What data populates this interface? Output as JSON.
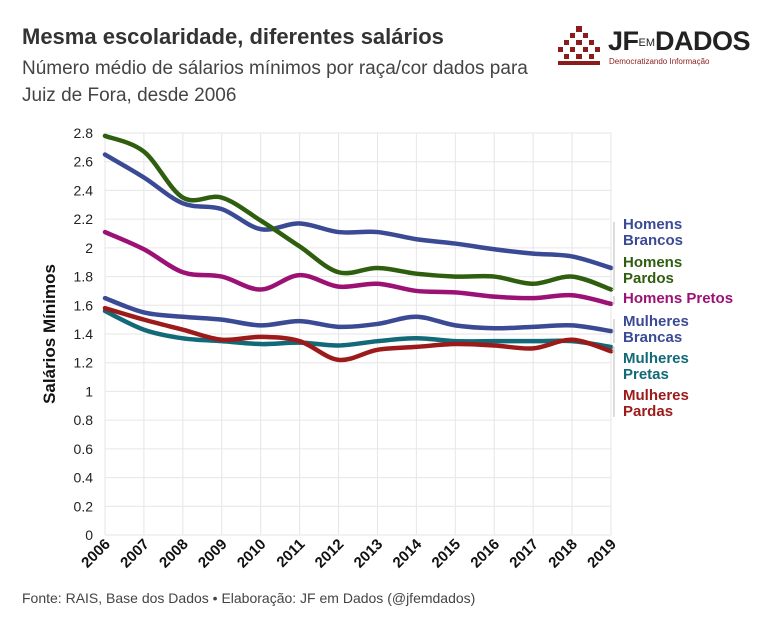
{
  "header": {
    "title": "Mesma escolaridade, diferentes salários",
    "subtitle": "Número médio de sálarios mínimos por raça/cor dados para Juiz de Fora, desde 2006"
  },
  "logo": {
    "word_a": "JF",
    "word_mid": "EM",
    "word_b": "DADOS",
    "tagline": "Democratizando Informação",
    "color": "#8b1c1c"
  },
  "source": "Fonte: RAIS, Base dos Dados • Elaboração: JF em Dados (@jfemdados)",
  "chart_data": {
    "type": "line",
    "ylabel": "Salários Mínimos",
    "xlabel": "",
    "x": [
      2006,
      2007,
      2008,
      2009,
      2010,
      2011,
      2012,
      2013,
      2014,
      2015,
      2016,
      2017,
      2018,
      2019
    ],
    "ylim": [
      0,
      2.8
    ],
    "yticks": [
      0,
      0.2,
      0.4,
      0.6,
      0.8,
      1,
      1.2,
      1.4,
      1.6,
      1.8,
      2,
      2.2,
      2.4,
      2.6,
      2.8
    ],
    "ytick_labels": [
      "0",
      "0.2",
      "0.4",
      "0.6",
      "0.8",
      "1",
      "1.2",
      "1.4",
      "1.6",
      "1.8",
      "2",
      "2.2",
      "2.4",
      "2.6",
      "2.8"
    ],
    "grid": true,
    "legend": "right, direct labels",
    "series": [
      {
        "name": "Homens Brancos",
        "color": "#3a4a94",
        "label_lines": [
          "Homens",
          "Brancos"
        ],
        "values": [
          2.65,
          2.49,
          2.31,
          2.27,
          2.13,
          2.17,
          2.11,
          2.11,
          2.06,
          2.03,
          1.99,
          1.96,
          1.94,
          1.86
        ]
      },
      {
        "name": "Homens Pardos",
        "color": "#2e5e0e",
        "label_lines": [
          "Homens",
          "Pardos"
        ],
        "values": [
          2.78,
          2.67,
          2.35,
          2.35,
          2.19,
          2.01,
          1.83,
          1.86,
          1.82,
          1.8,
          1.8,
          1.75,
          1.8,
          1.71
        ]
      },
      {
        "name": "Homens Pretos",
        "color": "#9c1274",
        "label_lines": [
          "Homens Pretos"
        ],
        "values": [
          2.11,
          1.99,
          1.83,
          1.8,
          1.71,
          1.81,
          1.73,
          1.75,
          1.7,
          1.69,
          1.66,
          1.65,
          1.67,
          1.61
        ]
      },
      {
        "name": "Mulheres Brancas",
        "color": "#3a4a94",
        "label_lines": [
          "Mulheres",
          "Brancas"
        ],
        "values": [
          1.65,
          1.55,
          1.52,
          1.5,
          1.46,
          1.49,
          1.45,
          1.47,
          1.52,
          1.46,
          1.44,
          1.45,
          1.46,
          1.42
        ]
      },
      {
        "name": "Mulheres Pretas",
        "color": "#126a78",
        "label_lines": [
          "Mulheres",
          "Pretas"
        ],
        "values": [
          1.56,
          1.43,
          1.37,
          1.35,
          1.33,
          1.34,
          1.32,
          1.35,
          1.37,
          1.35,
          1.35,
          1.35,
          1.35,
          1.31
        ]
      },
      {
        "name": "Mulheres Pardas",
        "color": "#9c1a1a",
        "label_lines": [
          "Mulheres",
          "Pardas"
        ],
        "values": [
          1.58,
          1.5,
          1.43,
          1.36,
          1.38,
          1.35,
          1.22,
          1.29,
          1.31,
          1.33,
          1.32,
          1.3,
          1.36,
          1.28
        ]
      }
    ]
  }
}
